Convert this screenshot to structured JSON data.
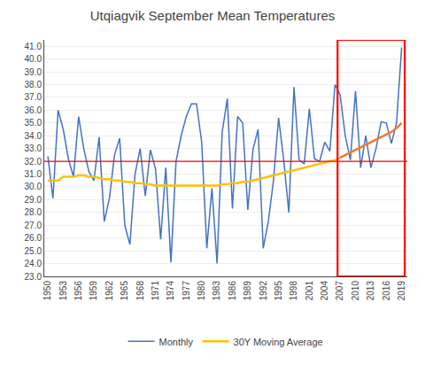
{
  "chart_data": {
    "type": "line",
    "title": "Utqiagvik September Mean Temperatures",
    "x": [
      1950,
      1951,
      1952,
      1953,
      1954,
      1955,
      1956,
      1957,
      1958,
      1959,
      1960,
      1961,
      1962,
      1963,
      1964,
      1965,
      1966,
      1967,
      1968,
      1969,
      1970,
      1971,
      1972,
      1973,
      1974,
      1975,
      1976,
      1977,
      1978,
      1979,
      1980,
      1981,
      1982,
      1983,
      1984,
      1985,
      1986,
      1987,
      1988,
      1989,
      1990,
      1991,
      1992,
      1993,
      1994,
      1995,
      1996,
      1997,
      1998,
      1999,
      2000,
      2001,
      2002,
      2003,
      2004,
      2005,
      2006,
      2007,
      2008,
      2009,
      2010,
      2011,
      2012,
      2013,
      2014,
      2015,
      2016,
      2017,
      2018,
      2019
    ],
    "series": [
      {
        "name": "Monthly",
        "color": "#4472C4",
        "values": [
          32.4,
          29.1,
          36.0,
          34.5,
          32.2,
          30.8,
          35.5,
          33.0,
          31.2,
          30.5,
          33.9,
          27.3,
          29.1,
          32.5,
          33.8,
          27.0,
          25.5,
          31.0,
          33.0,
          29.3,
          32.9,
          31.4,
          25.9,
          31.5,
          24.1,
          32.0,
          34.0,
          35.5,
          36.5,
          36.5,
          33.5,
          25.2,
          29.9,
          24.0,
          34.3,
          36.9,
          28.3,
          35.5,
          35.0,
          28.2,
          32.9,
          34.5,
          25.2,
          27.3,
          30.5,
          35.4,
          32.1,
          28.0,
          37.8,
          32.1,
          31.8,
          36.1,
          32.2,
          32.0,
          33.5,
          32.8,
          38.0,
          37.2,
          34.0,
          32.1,
          37.5,
          31.5,
          34.0,
          31.5,
          33.0,
          35.1,
          35.0,
          33.4,
          35.0,
          40.9
        ]
      },
      {
        "name": "30Y Moving Average",
        "color": "#FFC000",
        "values": [
          30.5,
          30.5,
          30.5,
          30.8,
          30.8,
          30.8,
          30.9,
          30.9,
          30.8,
          30.8,
          30.7,
          30.6,
          30.6,
          30.5,
          30.5,
          30.4,
          30.4,
          30.3,
          30.3,
          30.2,
          30.2,
          30.1,
          30.1,
          30.1,
          30.1,
          30.1,
          30.1,
          30.1,
          30.1,
          30.1,
          30.1,
          30.1,
          30.1,
          30.1,
          30.2,
          30.2,
          30.3,
          30.3,
          30.4,
          30.4,
          30.5,
          30.6,
          30.7,
          30.8,
          30.9,
          31.0,
          31.1,
          31.2,
          31.3,
          31.4,
          31.5,
          31.6,
          31.7,
          31.8,
          31.9,
          32.0,
          32.1,
          32.3,
          null,
          null,
          null,
          null,
          null,
          null,
          null,
          null,
          null,
          null,
          null,
          null
        ]
      },
      {
        "color": "#ED7D31",
        "values": [
          null,
          null,
          null,
          null,
          null,
          null,
          null,
          null,
          null,
          null,
          null,
          null,
          null,
          null,
          null,
          null,
          null,
          null,
          null,
          null,
          null,
          null,
          null,
          null,
          null,
          null,
          null,
          null,
          null,
          null,
          null,
          null,
          null,
          null,
          null,
          null,
          null,
          null,
          null,
          null,
          null,
          null,
          null,
          null,
          null,
          null,
          null,
          null,
          null,
          null,
          null,
          null,
          null,
          null,
          null,
          null,
          null,
          32.3,
          32.5,
          32.7,
          32.9,
          33.1,
          33.3,
          33.5,
          33.7,
          33.9,
          34.1,
          34.3,
          34.6,
          35.0
        ]
      }
    ],
    "reference_line": {
      "y": 32.0,
      "color": "#FF0000"
    },
    "highlight_box": {
      "x": [
        2006.5,
        2019.6
      ],
      "color": "#FF0000"
    },
    "xlim": [
      1949.3,
      2020.1
    ],
    "xticks": [
      1950,
      1953,
      1956,
      1959,
      1962,
      1965,
      1968,
      1971,
      1974,
      1977,
      1980,
      1983,
      1986,
      1989,
      1992,
      1995,
      1998,
      2001,
      2004,
      2007,
      2010,
      2013,
      2016,
      2019
    ],
    "ylim": [
      23.0,
      41.5
    ],
    "yticks": [
      {
        "value": 23.0,
        "label": "23.0"
      },
      {
        "value": 24.0,
        "label": "24.0"
      },
      {
        "value": 25.0,
        "label": "25.0"
      },
      {
        "value": 26.0,
        "label": "26.0"
      },
      {
        "value": 27.0,
        "label": "27.0"
      },
      {
        "value": 28.0,
        "label": "28.0"
      },
      {
        "value": 29.0,
        "label": "29.0"
      },
      {
        "value": 30.0,
        "label": "30.0"
      },
      {
        "value": 31.0,
        "label": "31.0"
      },
      {
        "value": 32.0,
        "label": "32.0"
      },
      {
        "value": 33.0,
        "label": "33.0"
      },
      {
        "value": 34.0,
        "label": "34.0"
      },
      {
        "value": 35.0,
        "label": "35.0"
      },
      {
        "value": 36.0,
        "label": "36.0"
      },
      {
        "value": 37.0,
        "label": "37.0"
      },
      {
        "value": 38.0,
        "label": "38.0"
      },
      {
        "value": 39.0,
        "label": "39.0"
      },
      {
        "value": 40.0,
        "label": "40.0"
      },
      {
        "value": 41.0,
        "label": "41.0"
      }
    ],
    "grid": "y",
    "legend": "bottom"
  }
}
